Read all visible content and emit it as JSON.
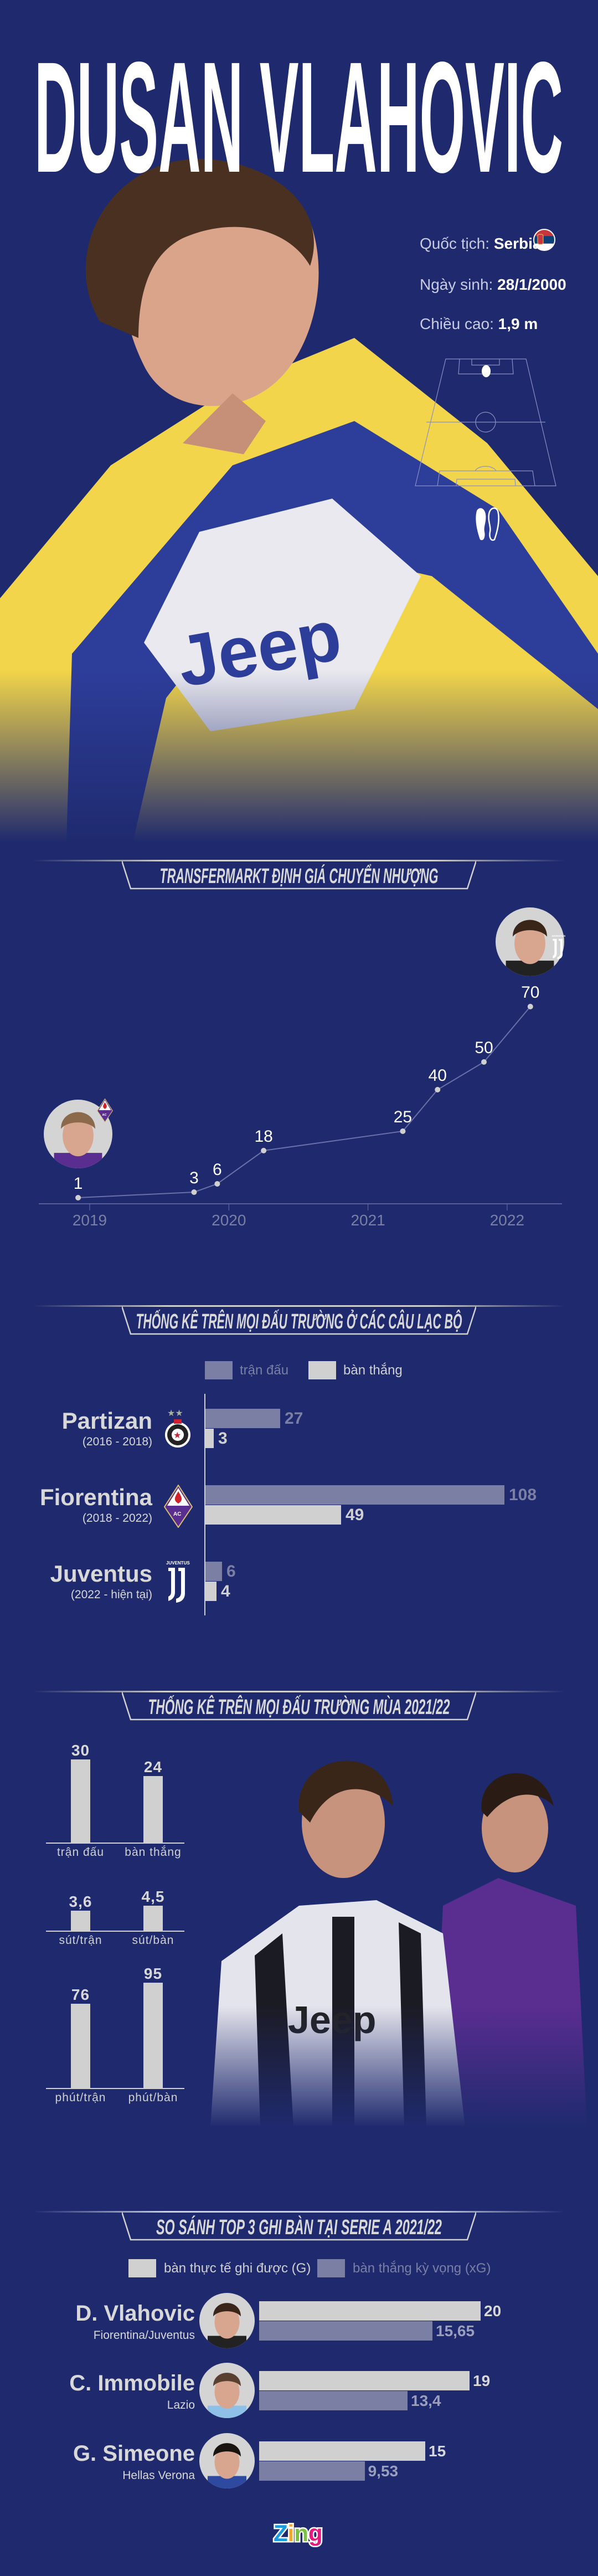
{
  "colors": {
    "background": "#1f2a6e",
    "matches_bar": "#7a7fa3",
    "goals_bar": "#d0d0d0",
    "text": "#d8d8d8",
    "kit_yellow": "#f2d54a",
    "kit_blue": "#2d3d9a"
  },
  "header": {
    "title": "DUSAN VLAHOVIC",
    "nationality_label": "Quốc tịch:",
    "nationality": "Serbia",
    "birth_label": "Ngày sinh:",
    "birth": "28/1/2000",
    "height_label": "Chiều cao:",
    "height": "1,9 m",
    "icons": [
      "serbia-flag-icon",
      "football-pitch-icon",
      "feet-icon"
    ],
    "preferred_foot": "left"
  },
  "chart_data": [
    {
      "type": "line",
      "title": "TRANSFERMARKT ĐỊNH GIÁ CHUYỂN NHƯỢNG",
      "x_ticks": [
        "2019",
        "2020",
        "2021",
        "2022"
      ],
      "points": [
        {
          "x": "2018-12",
          "y": 1,
          "label": "1"
        },
        {
          "x": "2019-10",
          "y": 3,
          "label": "3"
        },
        {
          "x": "2019-12",
          "y": 6,
          "label": "6"
        },
        {
          "x": "2020-04",
          "y": 18,
          "label": "18"
        },
        {
          "x": "2021-04",
          "y": 25,
          "label": "25"
        },
        {
          "x": "2021-07",
          "y": 40,
          "label": "40"
        },
        {
          "x": "2021-11",
          "y": 50,
          "label": "50"
        },
        {
          "x": "2022-03",
          "y": 70,
          "label": "70"
        }
      ],
      "annotations": [
        {
          "at": "2018-12",
          "image": "player-portrait-fiorentina",
          "club_icon": "fiorentina-logo-icon"
        },
        {
          "at": "2022-03",
          "image": "player-portrait-juventus",
          "club_icon": "juventus-logo-icon"
        }
      ],
      "grid": false
    },
    {
      "type": "bar",
      "orientation": "horizontal",
      "title": "THỐNG KÊ TRÊN MỌI ĐẤU TRƯỜNG Ở CÁC CÂU LẠC BỘ",
      "legend": [
        "trận đấu",
        "bàn thắng"
      ],
      "legend_placement": "top",
      "categories": [
        {
          "name": "Partizan",
          "period": "(2016 - 2018)",
          "logo": "partizan-logo-icon"
        },
        {
          "name": "Fiorentina",
          "period": "(2018 - 2022)",
          "logo": "fiorentina-logo-icon"
        },
        {
          "name": "Juventus",
          "period": "(2022 - hiện tại)",
          "logo": "juventus-logo-icon"
        }
      ],
      "series": [
        {
          "name": "trận đấu",
          "values": [
            27,
            108,
            6
          ],
          "labels": [
            "27",
            "108",
            "6"
          ]
        },
        {
          "name": "bàn thắng",
          "values": [
            3,
            49,
            4
          ],
          "labels": [
            "3",
            "49",
            "4"
          ]
        }
      ]
    },
    {
      "type": "bar",
      "title": "THỐNG KÊ TRÊN MỌI ĐẤU TRƯỜNG MÙA 2021/22",
      "groups": [
        {
          "categories": [
            "trận đấu",
            "bàn thắng"
          ],
          "values": [
            30,
            24
          ],
          "labels": [
            "30",
            "24"
          ]
        },
        {
          "categories": [
            "sút/trận",
            "sút/bàn"
          ],
          "values": [
            3.6,
            4.5
          ],
          "labels": [
            "3,6",
            "4,5"
          ]
        },
        {
          "categories": [
            "phút/trận",
            "phút/bàn"
          ],
          "values": [
            76,
            95
          ],
          "labels": [
            "76",
            "95"
          ]
        }
      ]
    },
    {
      "type": "bar",
      "orientation": "horizontal",
      "title": "SO SÁNH TOP 3 GHI BÀN TẠI SERIE A 2021/22",
      "legend": [
        "bàn thực tế ghi được (G)",
        "bàn thắng kỳ vọng (xG)"
      ],
      "legend_placement": "top",
      "categories": [
        {
          "name": "D. Vlahovic",
          "club": "Fiorentina/Juventus"
        },
        {
          "name": "C. Immobile",
          "club": "Lazio"
        },
        {
          "name": "G. Simeone",
          "club": "Hellas Verona"
        }
      ],
      "series": [
        {
          "name": "bàn thực tế ghi được (G)",
          "values": [
            20,
            19,
            15
          ],
          "labels": [
            "20",
            "19",
            "15"
          ]
        },
        {
          "name": "bàn thắng kỳ vọng (xG)",
          "values": [
            15.65,
            13.4,
            9.53
          ],
          "labels": [
            "15,65",
            "13,4",
            "9,53"
          ]
        }
      ]
    }
  ],
  "footer": {
    "logo": "Zing"
  }
}
